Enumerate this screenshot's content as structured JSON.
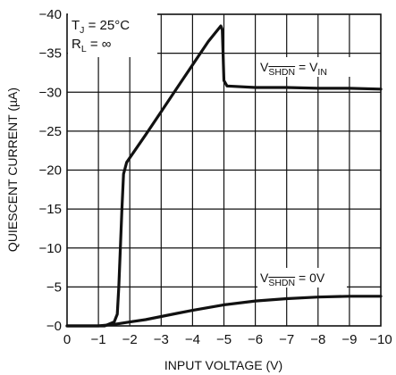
{
  "chart_data": {
    "type": "line",
    "title": "",
    "xlabel": "INPUT VOLTAGE (V)",
    "ylabel": "QUIESCENT CURRENT (µA)",
    "xlim": [
      0,
      -10
    ],
    "ylim": [
      0,
      -40
    ],
    "grid": true,
    "x_ticks": [
      "0",
      "−1",
      "−2",
      "−3",
      "−4",
      "−5",
      "−6",
      "−7",
      "−8",
      "−9",
      "−10"
    ],
    "y_ticks": [
      "−0",
      "−5",
      "−10",
      "−15",
      "−20",
      "−25",
      "−30",
      "−35",
      "−40"
    ],
    "x_tick_values": [
      0,
      -1,
      -2,
      -3,
      -4,
      -5,
      -6,
      -7,
      -8,
      -9,
      -10
    ],
    "y_tick_values": [
      0,
      -5,
      -10,
      -15,
      -20,
      -25,
      -30,
      -35,
      -40
    ],
    "annotation": {
      "tj_main": "T",
      "tj_sub": "J",
      "tj_rest": " = 25°C",
      "rl_main": "R",
      "rl_sub": "L",
      "rl_rest": " = ∞"
    },
    "series": [
      {
        "label_main": "V",
        "label_sub": "SHDN",
        "label_rest_a": " = V",
        "label_rest_sub": "IN",
        "x": [
          0,
          -1.2,
          -1.5,
          -1.6,
          -1.65,
          -1.75,
          -1.8,
          -1.9,
          -2.5,
          -3.0,
          -3.5,
          -4.0,
          -4.5,
          -4.9,
          -4.95,
          -5.0,
          -5.1,
          -6,
          -7,
          -8,
          -9,
          -10
        ],
        "y": [
          0,
          0,
          -0.5,
          -1.5,
          -5,
          -15,
          -19.5,
          -21,
          -24.5,
          -27.5,
          -30.5,
          -33.5,
          -36.5,
          -38.5,
          -38,
          -31.5,
          -30.8,
          -30.6,
          -30.6,
          -30.5,
          -30.5,
          -30.4
        ]
      },
      {
        "label_main": "V",
        "label_sub": "SHDN",
        "label_rest_a": " = 0V",
        "label_rest_sub": "",
        "x": [
          0,
          -1.0,
          -1.5,
          -2.0,
          -2.5,
          -3.0,
          -3.5,
          -4.0,
          -5.0,
          -6.0,
          -7.0,
          -8.0,
          -9.0,
          -10.0
        ],
        "y": [
          0,
          0,
          -0.2,
          -0.5,
          -0.8,
          -1.2,
          -1.6,
          -2.0,
          -2.7,
          -3.2,
          -3.5,
          -3.7,
          -3.8,
          -3.8
        ]
      }
    ]
  }
}
